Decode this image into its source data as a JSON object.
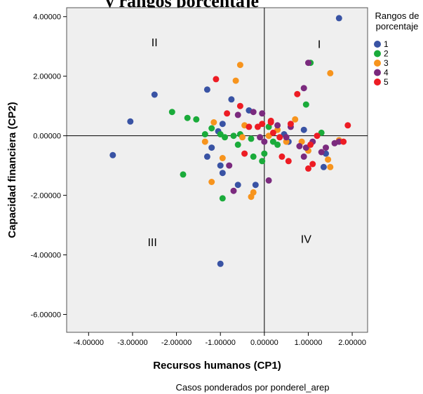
{
  "chart_data": {
    "type": "scatter",
    "title_fragment": "y rangos porcentaje",
    "xlabel": "Recursos humanos (CP1)",
    "ylabel": "Capacidad financiera (CP2)",
    "xlim": [
      -4.5,
      2.35
    ],
    "ylim": [
      -6.6,
      4.3
    ],
    "x_ticks": [
      -4,
      -3,
      -2,
      -1,
      0,
      1,
      2
    ],
    "x_tick_labels": [
      "-4.00000",
      "-3.00000",
      "-2.00000",
      "-1.00000",
      "0.00000",
      "1.00000",
      "2.00000"
    ],
    "y_ticks": [
      4,
      2,
      0,
      -2,
      -4,
      -6
    ],
    "y_tick_labels": [
      "4.00000",
      "2.00000",
      "0.00000",
      "-2.00000",
      "-4.00000",
      "-6.00000"
    ],
    "reference_lines": {
      "x": 0,
      "y": 0
    },
    "quadrant_labels": [
      {
        "text": "II",
        "x": -2.5,
        "y": 3.0
      },
      {
        "text": "I",
        "x": 1.25,
        "y": 2.95
      },
      {
        "text": "III",
        "x": -2.55,
        "y": -3.7
      },
      {
        "text": "IV",
        "x": 0.95,
        "y": -3.6
      }
    ],
    "legend": {
      "title": [
        "Rangos de",
        "porcentaje"
      ],
      "placement": "top-right"
    },
    "footnote": "Casos ponderados por ponderel_arep",
    "grid": false,
    "series": [
      {
        "name": "1",
        "color": "#3953a4",
        "points": [
          [
            1.7,
            3.95
          ],
          [
            -3.45,
            -0.65
          ],
          [
            -3.05,
            0.48
          ],
          [
            -2.5,
            1.38
          ],
          [
            -1.3,
            1.55
          ],
          [
            -0.75,
            1.22
          ],
          [
            -1.05,
            0.15
          ],
          [
            -0.95,
            0.4
          ],
          [
            -0.35,
            0.85
          ],
          [
            0.45,
            0.05
          ],
          [
            0.55,
            -0.2
          ],
          [
            0.9,
            0.2
          ],
          [
            1.35,
            -1.05
          ],
          [
            1.4,
            -0.6
          ],
          [
            -1.0,
            -1.0
          ],
          [
            -0.95,
            -1.25
          ],
          [
            -0.6,
            -1.65
          ],
          [
            -0.2,
            -1.65
          ],
          [
            -1.3,
            -0.7
          ],
          [
            -1.0,
            -4.3
          ],
          [
            -1.2,
            -0.4
          ]
        ]
      },
      {
        "name": "2",
        "color": "#1aab3a",
        "points": [
          [
            -2.1,
            0.8
          ],
          [
            -1.75,
            0.6
          ],
          [
            -1.55,
            0.55
          ],
          [
            -1.35,
            0.05
          ],
          [
            -1.2,
            0.25
          ],
          [
            -1.0,
            0.05
          ],
          [
            -0.9,
            -0.05
          ],
          [
            -0.7,
            0.0
          ],
          [
            -0.55,
            0.05
          ],
          [
            -0.3,
            -0.1
          ],
          [
            0.0,
            -0.6
          ],
          [
            0.1,
            0.3
          ],
          [
            0.2,
            -0.2
          ],
          [
            1.05,
            2.45
          ],
          [
            0.95,
            1.05
          ],
          [
            1.3,
            0.1
          ],
          [
            -1.85,
            -1.3
          ],
          [
            -0.95,
            -2.1
          ],
          [
            -0.6,
            -0.3
          ],
          [
            -0.25,
            -0.7
          ],
          [
            0.3,
            -0.3
          ],
          [
            -0.05,
            -0.85
          ]
        ]
      },
      {
        "name": "3",
        "color": "#f7941d",
        "points": [
          [
            -0.55,
            2.38
          ],
          [
            -0.65,
            1.85
          ],
          [
            1.5,
            2.1
          ],
          [
            -1.15,
            0.45
          ],
          [
            -0.45,
            0.35
          ],
          [
            0.1,
            0.0
          ],
          [
            0.3,
            0.2
          ],
          [
            0.5,
            -0.2
          ],
          [
            0.7,
            0.55
          ],
          [
            0.85,
            -0.2
          ],
          [
            1.0,
            -0.5
          ],
          [
            1.45,
            -0.8
          ],
          [
            1.5,
            -1.05
          ],
          [
            1.7,
            -0.15
          ],
          [
            -1.35,
            -0.2
          ],
          [
            -0.95,
            -0.75
          ],
          [
            -0.5,
            -0.05
          ],
          [
            -0.3,
            -2.05
          ],
          [
            -0.25,
            -1.9
          ],
          [
            -1.2,
            -1.55
          ]
        ]
      },
      {
        "name": "4",
        "color": "#7b2a7e",
        "points": [
          [
            1.0,
            2.45
          ],
          [
            0.9,
            1.6
          ],
          [
            -0.6,
            0.7
          ],
          [
            -0.25,
            0.8
          ],
          [
            -0.05,
            0.75
          ],
          [
            0.3,
            0.35
          ],
          [
            0.6,
            0.3
          ],
          [
            0.8,
            -0.35
          ],
          [
            0.95,
            -0.4
          ],
          [
            1.1,
            -0.2
          ],
          [
            1.3,
            -0.55
          ],
          [
            1.6,
            -0.25
          ],
          [
            1.7,
            -0.2
          ],
          [
            1.4,
            -0.4
          ],
          [
            -0.8,
            -1.0
          ],
          [
            -0.7,
            -1.85
          ],
          [
            0.1,
            -1.5
          ],
          [
            -0.1,
            -0.05
          ],
          [
            0.0,
            -0.2
          ],
          [
            0.5,
            -0.05
          ],
          [
            0.9,
            -0.7
          ]
        ]
      },
      {
        "name": "5",
        "color": "#ed1c24",
        "points": [
          [
            -1.1,
            1.9
          ],
          [
            -0.85,
            0.75
          ],
          [
            -0.55,
            1.0
          ],
          [
            -0.15,
            0.3
          ],
          [
            0.15,
            0.45
          ],
          [
            0.2,
            0.1
          ],
          [
            0.35,
            -0.05
          ],
          [
            0.6,
            0.4
          ],
          [
            0.75,
            1.4
          ],
          [
            1.05,
            -0.3
          ],
          [
            1.2,
            0.0
          ],
          [
            1.8,
            -0.2
          ],
          [
            1.9,
            0.35
          ],
          [
            -0.45,
            -0.6
          ],
          [
            0.4,
            -0.7
          ],
          [
            0.55,
            -0.85
          ],
          [
            1.0,
            -1.1
          ],
          [
            1.1,
            -0.95
          ],
          [
            0.15,
            0.5
          ],
          [
            -0.05,
            0.4
          ],
          [
            -0.35,
            0.3
          ]
        ]
      }
    ]
  }
}
